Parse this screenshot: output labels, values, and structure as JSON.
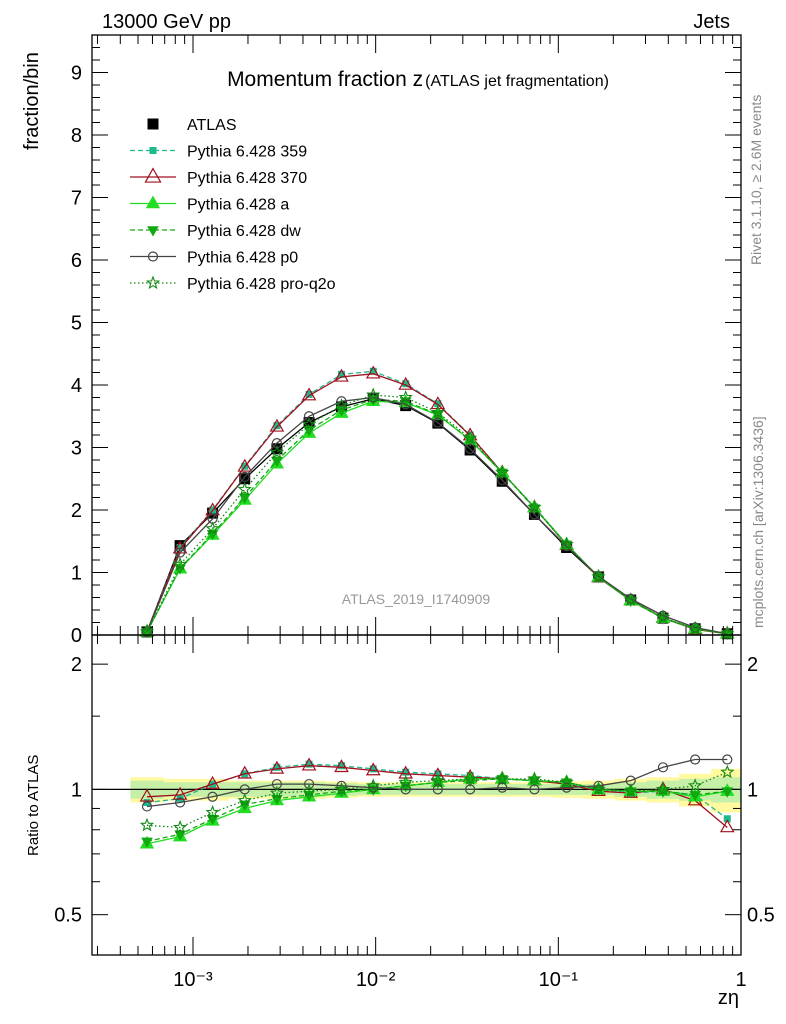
{
  "header": {
    "left": "13000 GeV pp",
    "right": "Jets"
  },
  "side_text": {
    "rivet": "Rivet 3.1.10, ≥ 2.6M events",
    "url": "mcplots.cern.ch [arXiv:1306.3436]"
  },
  "watermark": "ATLAS_2019_I1740909",
  "colors": {
    "atlas": "#000000",
    "p359": "#1fb98e",
    "p370": "#a0101e",
    "pa": "#22dd22",
    "pdw": "#11aa11",
    "pp0": "#444444",
    "pq2o": "#118811",
    "band_inner": "#c6f0a8",
    "band_outer": "#fff9a0"
  },
  "chart_data": [
    {
      "type": "line",
      "title": "Momentum fraction z",
      "title_small": "(ATLAS jet fragmentation)",
      "ylabel": "fraction/bin",
      "xscale": "log",
      "xlim": [
        0.00028,
        1.0
      ],
      "ylim": [
        0,
        9.6
      ],
      "yticks": [
        "0",
        "1",
        "2",
        "3",
        "4",
        "5",
        "6",
        "7",
        "8",
        "9"
      ],
      "legend_position": "top-left",
      "x": [
        0.00056,
        0.00085,
        0.00128,
        0.00192,
        0.00288,
        0.00432,
        0.0065,
        0.0097,
        0.0146,
        0.0219,
        0.0329,
        0.0493,
        0.074,
        0.111,
        0.166,
        0.249,
        0.374,
        0.561,
        0.841
      ],
      "series": [
        {
          "name": "ATLAS",
          "key": "atlas",
          "values": [
            0.05,
            1.43,
            1.95,
            2.5,
            2.98,
            3.4,
            3.65,
            3.78,
            3.67,
            3.39,
            2.96,
            2.46,
            1.93,
            1.4,
            0.93,
            0.56,
            0.27,
            0.1,
            0.02
          ]
        },
        {
          "name": "Pythia 6.428 359",
          "key": "p359",
          "values": [
            0.05,
            1.4,
            2.0,
            2.7,
            3.35,
            3.85,
            4.17,
            4.22,
            4.02,
            3.7,
            3.2,
            2.6,
            2.05,
            1.45,
            0.93,
            0.55,
            0.27,
            0.1,
            0.02
          ]
        },
        {
          "name": "Pythia 6.428 370",
          "key": "p370",
          "values": [
            0.05,
            1.38,
            1.99,
            2.69,
            3.33,
            3.83,
            4.13,
            4.18,
            4.0,
            3.69,
            3.19,
            2.6,
            2.04,
            1.44,
            0.92,
            0.55,
            0.27,
            0.09,
            0.02
          ]
        },
        {
          "name": "Pythia 6.428 a",
          "key": "pa",
          "values": [
            0.05,
            1.06,
            1.6,
            2.16,
            2.74,
            3.23,
            3.55,
            3.74,
            3.72,
            3.52,
            3.12,
            2.6,
            2.04,
            1.45,
            0.93,
            0.55,
            0.27,
            0.1,
            0.02
          ]
        },
        {
          "name": "Pythia 6.428 dw",
          "key": "pdw",
          "values": [
            0.05,
            1.07,
            1.62,
            2.2,
            2.79,
            3.28,
            3.6,
            3.77,
            3.74,
            3.53,
            3.12,
            2.6,
            2.03,
            1.45,
            0.93,
            0.55,
            0.27,
            0.1,
            0.02
          ]
        },
        {
          "name": "Pythia 6.428 p0",
          "key": "pp0",
          "values": [
            0.05,
            1.32,
            1.86,
            2.53,
            3.07,
            3.5,
            3.74,
            3.8,
            3.69,
            3.4,
            2.98,
            2.48,
            1.93,
            1.42,
            0.94,
            0.58,
            0.31,
            0.12,
            0.02
          ]
        },
        {
          "name": "Pythia 6.428 pro-q2o",
          "key": "pq2o",
          "values": [
            0.05,
            1.13,
            1.7,
            2.33,
            2.92,
            3.37,
            3.67,
            3.84,
            3.8,
            3.56,
            3.15,
            2.6,
            2.04,
            1.45,
            0.93,
            0.56,
            0.28,
            0.1,
            0.02
          ]
        }
      ]
    },
    {
      "type": "line",
      "ylabel": "Ratio to ATLAS",
      "xlabel": "zη",
      "yscale": "log",
      "ylim": [
        0.4,
        2.35
      ],
      "yticks": [
        "0.5",
        "1",
        "2"
      ],
      "xticks": [
        "10⁻³",
        "10⁻²",
        "10⁻¹",
        "1"
      ],
      "x": [
        0.00056,
        0.00085,
        0.00128,
        0.00192,
        0.00288,
        0.00432,
        0.0065,
        0.0097,
        0.0146,
        0.0219,
        0.0329,
        0.0493,
        0.074,
        0.111,
        0.166,
        0.249,
        0.374,
        0.561,
        0.841
      ],
      "band_inner": [
        [
          0.05,
          0.05
        ],
        [
          0.04,
          0.04
        ],
        [
          0.04,
          0.04
        ],
        [
          0.04,
          0.04
        ],
        [
          0.04,
          0.04
        ],
        [
          0.04,
          0.04
        ],
        [
          0.035,
          0.035
        ],
        [
          0.03,
          0.03
        ],
        [
          0.03,
          0.03
        ],
        [
          0.03,
          0.03
        ],
        [
          0.03,
          0.03
        ],
        [
          0.03,
          0.03
        ],
        [
          0.03,
          0.03
        ],
        [
          0.03,
          0.03
        ],
        [
          0.03,
          0.03
        ],
        [
          0.04,
          0.04
        ],
        [
          0.05,
          0.05
        ],
        [
          0.06,
          0.06
        ],
        [
          0.07,
          0.07
        ]
      ],
      "band_outer": [
        [
          0.07,
          0.07
        ],
        [
          0.06,
          0.06
        ],
        [
          0.06,
          0.06
        ],
        [
          0.05,
          0.05
        ],
        [
          0.05,
          0.05
        ],
        [
          0.05,
          0.05
        ],
        [
          0.045,
          0.045
        ],
        [
          0.04,
          0.04
        ],
        [
          0.04,
          0.04
        ],
        [
          0.04,
          0.04
        ],
        [
          0.04,
          0.04
        ],
        [
          0.04,
          0.04
        ],
        [
          0.04,
          0.04
        ],
        [
          0.045,
          0.045
        ],
        [
          0.05,
          0.05
        ],
        [
          0.06,
          0.06
        ],
        [
          0.07,
          0.07
        ],
        [
          0.09,
          0.09
        ],
        [
          0.12,
          0.12
        ]
      ],
      "series": [
        {
          "key": "p359",
          "values": [
            0.93,
            0.95,
            1.03,
            1.09,
            1.13,
            1.15,
            1.14,
            1.12,
            1.1,
            1.09,
            1.08,
            1.06,
            1.05,
            1.03,
            1.0,
            0.98,
            0.99,
            0.97,
            0.85
          ]
        },
        {
          "key": "p370",
          "values": [
            0.96,
            0.97,
            1.03,
            1.09,
            1.12,
            1.14,
            1.13,
            1.11,
            1.09,
            1.08,
            1.07,
            1.06,
            1.05,
            1.03,
            0.99,
            0.98,
            1.0,
            0.94,
            0.81
          ]
        },
        {
          "key": "pa",
          "values": [
            0.74,
            0.77,
            0.84,
            0.9,
            0.94,
            0.96,
            0.98,
            1.0,
            1.02,
            1.04,
            1.06,
            1.06,
            1.05,
            1.04,
            1.0,
            0.99,
            0.99,
            0.96,
            0.99
          ]
        },
        {
          "key": "pdw",
          "values": [
            0.75,
            0.78,
            0.85,
            0.92,
            0.95,
            0.97,
            0.99,
            1.0,
            1.02,
            1.04,
            1.05,
            1.06,
            1.05,
            1.04,
            1.0,
            0.99,
            0.99,
            0.97,
            0.99
          ]
        },
        {
          "key": "pp0",
          "values": [
            0.91,
            0.93,
            0.96,
            1.0,
            1.03,
            1.03,
            1.02,
            1.01,
            1.0,
            1.0,
            1.0,
            1.01,
            1.0,
            1.01,
            1.02,
            1.05,
            1.13,
            1.18,
            1.18
          ]
        },
        {
          "key": "pq2o",
          "values": [
            0.82,
            0.81,
            0.88,
            0.94,
            0.98,
            0.99,
            1.0,
            1.02,
            1.04,
            1.05,
            1.06,
            1.06,
            1.06,
            1.04,
            1.0,
            0.99,
            1.0,
            1.02,
            1.1
          ]
        }
      ]
    }
  ]
}
